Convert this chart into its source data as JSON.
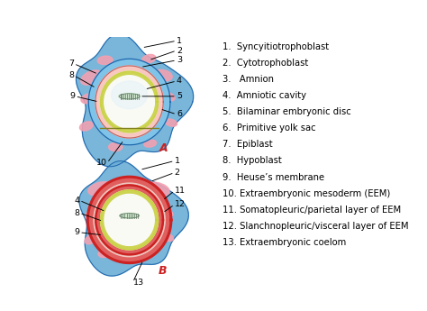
{
  "legend_items": [
    "1.  Syncyitiotrophoblast",
    "2.  Cytotrophoblast",
    "3.   Amnion",
    "4.  Amniotic cavity",
    "5.  Bilaminar embryonic disc",
    "6.  Primitive yolk sac",
    "7.  Epiblast",
    "8.  Hypoblast",
    "9.  Heuse’s membrane",
    "10. Extraembryonic mesoderm (EEM)",
    "11. Somatopleuric/parietal layer of EEM",
    "12. Slanchnopleuric/visceral layer of EEM",
    "13. Extraembryonic coelom"
  ],
  "label_A": "A",
  "label_B": "B",
  "bg_color": "#ffffff",
  "text_color": "#000000",
  "legend_fontsize": 7.2,
  "annot_fontsize": 6.8,
  "blue_outer": "#6baed6",
  "blue_cyto": "#9ecae1",
  "pink_blob": "#f4a0b0",
  "pink_amnion": "#f8c8c0",
  "green_yolk": "#c8d040",
  "white_cavity": "#f8f8f0",
  "red_ring": "#cc2222",
  "red_fill": "#e06060",
  "label_color": "#cc2222"
}
